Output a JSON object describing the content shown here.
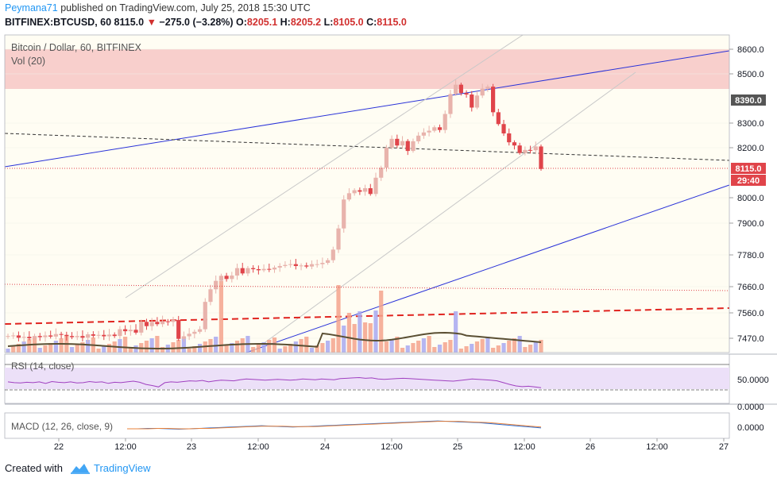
{
  "header": {
    "author": "Peymana71",
    "published_text": "published on TradingView.com, July 25, 2018 15:30 UTC",
    "symbol": "BITFINEX:BTCUSD, 60",
    "last_price": "8115.0",
    "change": "−275.0 (−3.28%)",
    "open_label": "O:",
    "open": "8205.1",
    "high_label": "H:",
    "high": "8205.2",
    "low_label": "L:",
    "low": "8105.0",
    "close_label": "C:",
    "close": "8115.0"
  },
  "footer": {
    "created_with": "Created with",
    "brand": "TradingView"
  },
  "colors": {
    "up": "#e8b3ac",
    "down": "#e0444a",
    "vol_up": "#f5a38c",
    "vol_blue": "#a8a8f0",
    "channel_blue": "#2932d8",
    "axis_text": "#131722",
    "rsi_line": "#a040c0",
    "macd_line": "#2a6fd6",
    "signal_line": "#e8813a"
  },
  "chart_data": [
    {
      "type": "candlestick",
      "title": "Bitcoin / Dollar, 60, BITFINEX",
      "indicator_label": "Vol (20)",
      "y_ticks": [
        "8600.0",
        "8500.0",
        "8300.0",
        "8200.0",
        "8000.0",
        "7900.0",
        "7780.0",
        "7660.0",
        "7560.0",
        "7470.0"
      ],
      "x_ticks": [
        "22",
        "12:00",
        "23",
        "12:00",
        "24",
        "12:00",
        "25",
        "12:00",
        "26",
        "12:00",
        "27"
      ],
      "y_scale": "log",
      "price_labels": {
        "level": "8390.0",
        "current": "8115.0",
        "countdown": "29:40"
      },
      "resistance_zone": [
        8440,
        8600
      ],
      "candles_close": [
        7478,
        7480,
        7472,
        7475,
        7470,
        7478,
        7474,
        7480,
        7476,
        7485,
        7482,
        7478,
        7474,
        7478,
        7472,
        7484,
        7479,
        7482,
        7477,
        7483,
        7478,
        7502,
        7495,
        7500,
        7490,
        7528,
        7513,
        7528,
        7520,
        7530,
        7528,
        7535,
        7468,
        7477,
        7486,
        7493,
        7502,
        7602,
        7650,
        7682,
        7701,
        7689,
        7702,
        7730,
        7710,
        7730,
        7726,
        7722,
        7727,
        7725,
        7732,
        7738,
        7742,
        7745,
        7738,
        7740,
        7736,
        7745,
        7745,
        7750,
        7760,
        7800,
        7880,
        7993,
        8018,
        8030,
        8024,
        8038,
        8015,
        8080,
        8120,
        8200,
        8236,
        8209,
        8227,
        8187,
        8226,
        8249,
        8262,
        8269,
        8283,
        8272,
        8337,
        8418,
        8456,
        8422,
        8416,
        8363,
        8412,
        8440,
        8448,
        8344,
        8296,
        8258,
        8222,
        8209,
        8179,
        8191,
        8190,
        8205,
        8115
      ],
      "channel_lines_desc": [
        "blue upper channel",
        "blue lower channel",
        "grey parallel channel",
        "black dashed trendline",
        "red dashed trendline"
      ],
      "volume_ma_label": "Vol MA"
    },
    {
      "type": "line",
      "title": "RSI (14, close)",
      "y_ticks": [
        "50.0000",
        "0.0000"
      ],
      "series": [
        {
          "name": "RSI",
          "values": [
            52,
            50,
            49,
            51,
            50,
            52,
            48,
            53,
            51,
            50,
            52,
            49,
            50,
            53,
            51,
            52,
            48,
            51,
            50,
            52,
            54,
            51,
            45,
            42,
            38,
            50,
            52,
            51,
            53,
            55,
            54,
            56,
            52,
            55,
            57,
            56,
            55,
            58,
            60,
            59,
            58,
            57,
            58,
            59,
            58,
            57,
            58,
            60,
            59,
            58,
            60,
            59,
            58,
            61,
            62,
            63,
            64,
            62,
            63,
            60,
            59,
            60,
            61,
            62,
            61,
            60,
            59,
            58,
            57,
            56,
            55,
            54,
            56,
            58,
            60,
            59,
            58,
            57,
            55,
            50,
            45,
            41,
            39,
            40,
            38,
            36
          ]
        }
      ]
    },
    {
      "type": "line",
      "title": "MACD (12, 26, close, 9)",
      "y_ticks": [
        "0.0000"
      ],
      "series": [
        {
          "name": "MACD",
          "values": [
            0,
            0,
            1,
            1,
            0,
            -1,
            0,
            1,
            2,
            3,
            4,
            5,
            6,
            7,
            6,
            5,
            4,
            5,
            6,
            7,
            8,
            9,
            10,
            11,
            12,
            13,
            14,
            15,
            16,
            17,
            18,
            17,
            16,
            15,
            14,
            12,
            10,
            8,
            6,
            4,
            2
          ]
        },
        {
          "name": "Signal",
          "values": [
            0,
            0,
            0,
            1,
            1,
            0,
            0,
            1,
            1,
            2,
            3,
            4,
            5,
            6,
            6,
            6,
            5,
            5,
            5,
            6,
            7,
            8,
            9,
            10,
            11,
            12,
            13,
            14,
            15,
            16,
            17,
            17,
            17,
            16,
            15,
            14,
            12,
            10,
            8,
            6,
            4
          ]
        }
      ]
    }
  ]
}
